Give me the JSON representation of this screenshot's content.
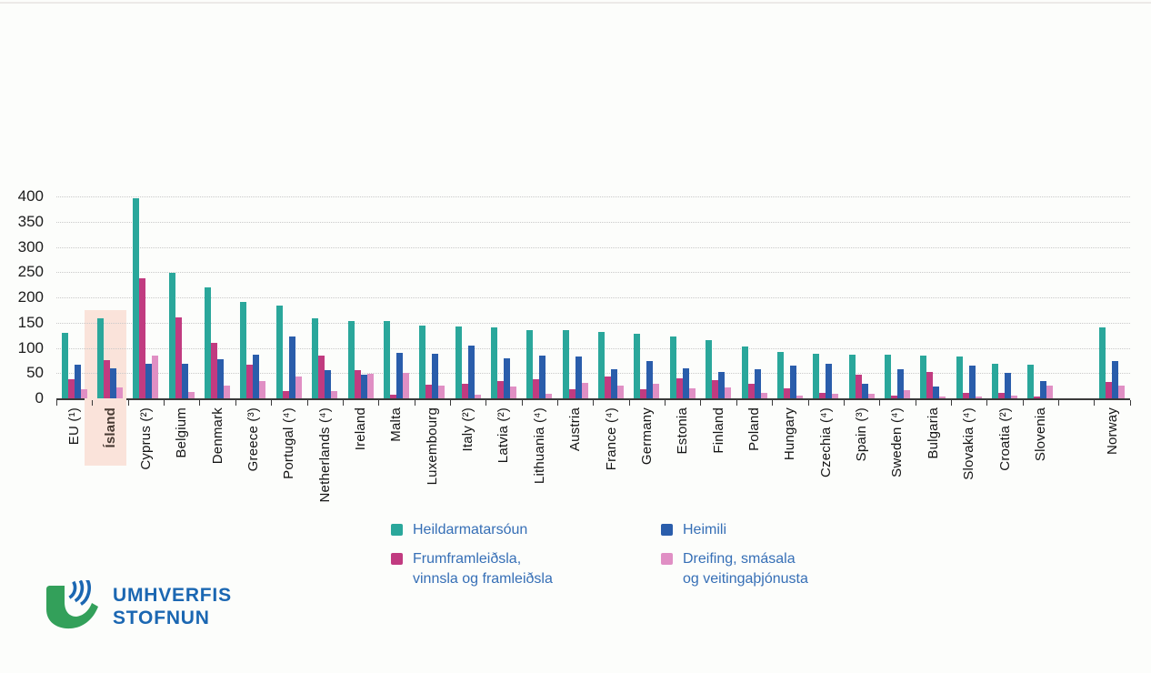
{
  "page": {
    "background": "#fcfdfb"
  },
  "chart_data": {
    "type": "bar",
    "title": "",
    "xlabel": "",
    "ylabel": "",
    "ylim": [
      0,
      400
    ],
    "yticks": [
      0,
      50,
      100,
      150,
      200,
      250,
      300,
      350,
      400
    ],
    "grid": "horizontal-dotted",
    "legend_position": "bottom",
    "highlighted_category": "Ísland",
    "highlight_color": "#fae3da",
    "categories": [
      "EU (¹)",
      "Ísland",
      "Cyprus (²)",
      "Belgium",
      "Denmark",
      "Greece (³)",
      "Portugal (⁴)",
      "Netherlands (⁴)",
      "Ireland",
      "Malta",
      "Luxembourg",
      "Italy (²)",
      "Latvia (²)",
      "Lithuania (⁴)",
      "Austria",
      "France (⁴)",
      "Germany",
      "Estonia",
      "Finland",
      "Poland",
      "Hungary",
      "Czechia (⁴)",
      "Spain (³)",
      "Sweden (⁴)",
      "Bulgaria",
      "Slovakia (⁴)",
      "Croatia (²)",
      "Slovenia",
      "",
      "Norway"
    ],
    "series": [
      {
        "name": "Heildarmatarsóun",
        "color": "#2AA79B",
        "values": [
          130,
          158,
          396,
          249,
          219,
          191,
          184,
          159,
          154,
          153,
          144,
          143,
          141,
          135,
          135,
          131,
          128,
          123,
          115,
          103,
          91,
          89,
          87,
          86,
          85,
          82,
          68,
          66,
          null,
          141
        ]
      },
      {
        "name": "Frumframleiðsla, vinnsla og framleiðsla",
        "color": "#C13B80",
        "values": [
          38,
          75,
          238,
          160,
          110,
          67,
          15,
          84,
          56,
          7,
          27,
          28,
          34,
          37,
          18,
          43,
          18,
          40,
          36,
          29,
          19,
          10,
          47,
          5,
          53,
          11,
          10,
          4,
          null,
          32
        ]
      },
      {
        "name": "Heimili",
        "color": "#2A5DAB",
        "values": [
          67,
          59,
          69,
          68,
          77,
          86,
          122,
          56,
          46,
          90,
          88,
          104,
          80,
          84,
          82,
          58,
          74,
          59,
          52,
          58,
          65,
          68,
          28,
          58,
          23,
          64,
          50,
          34,
          null,
          74
        ]
      },
      {
        "name": "Dreifing, smásala og veitingaþjónusta",
        "color": "#E08FC4",
        "values": [
          18,
          21,
          84,
          13,
          26,
          34,
          43,
          14,
          48,
          50,
          25,
          8,
          24,
          9,
          31,
          26,
          29,
          20,
          21,
          11,
          5,
          9,
          9,
          16,
          3,
          3,
          5,
          25,
          null,
          26
        ]
      }
    ]
  },
  "legend": {
    "items": [
      {
        "label": "Heildarmatarsóun",
        "color": "#2AA79B"
      },
      {
        "label": "Heimili",
        "color": "#2A5DAB"
      },
      {
        "label": "Frumframleiðsla,\nvinnsla og framleiðsla",
        "color": "#C13B80"
      },
      {
        "label": "Dreifing, smásala\nog veitingaþjónusta",
        "color": "#E08FC4"
      }
    ]
  },
  "logo": {
    "line1": "UMHVERFIS",
    "line2": "STOFNUN",
    "green": "#33A05A",
    "blue": "#1B67B2"
  }
}
